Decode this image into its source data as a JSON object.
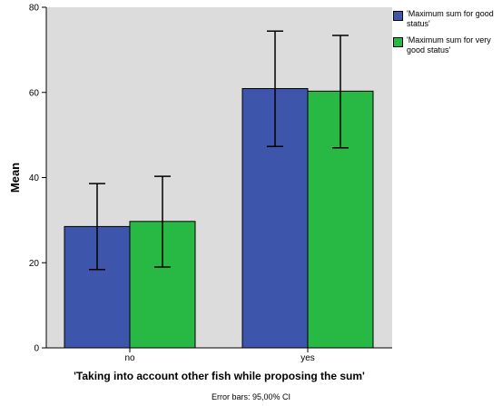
{
  "chart_data": {
    "type": "bar",
    "categories": [
      "no",
      "yes"
    ],
    "series": [
      {
        "name": "'Maximum sum for good status'",
        "values": [
          28.5,
          60.9
        ],
        "ci_low": [
          18.4,
          47.3
        ],
        "ci_high": [
          38.6,
          74.4
        ]
      },
      {
        "name": "'Maximum sum for very good status'",
        "values": [
          29.7,
          60.3
        ],
        "ci_low": [
          19.0,
          47.0
        ],
        "ci_high": [
          40.3,
          73.4
        ]
      }
    ],
    "xlabel": "'Taking into account other fish while proposing the sum'",
    "ylabel": "Mean",
    "ylim": [
      0,
      80
    ],
    "yticks": [
      0,
      20,
      40,
      60,
      80
    ],
    "grid": false,
    "legend_position": "top-right",
    "footnote": "Error bars: 95,00% CI"
  },
  "colors": {
    "plot_background": "#dcdcdc",
    "series": [
      "#3d56ab",
      "#27b944"
    ],
    "axis": "#000000"
  }
}
